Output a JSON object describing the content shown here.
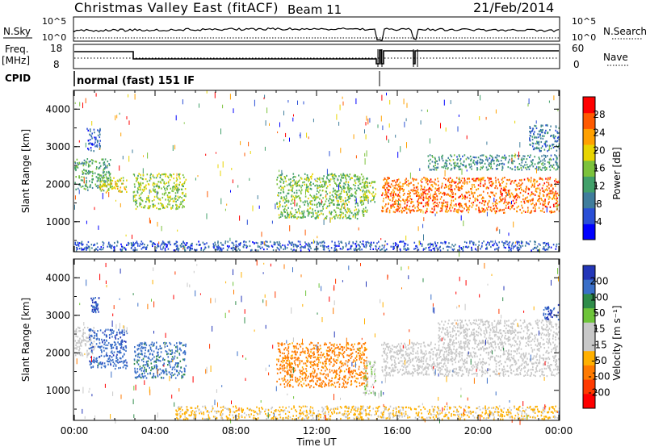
{
  "header": {
    "title": "Christmas Valley East (fitACF)",
    "beam": "Beam 11",
    "date": "21/Feb/2014"
  },
  "strips": {
    "nsky_label": "N.Sky",
    "nsearch_label": "N.Search",
    "freq_label_1": "Freq.",
    "freq_label_2": "[MHz]",
    "nave_label": "Nave",
    "cpid_label": "CPID",
    "cpid_text": "normal (fast) 151 IF",
    "nsky_ticks": [
      "10^5",
      "10^0"
    ],
    "nsearch_ticks": [
      "10^5",
      "10^0"
    ],
    "freq_ticks": [
      "18",
      "8"
    ],
    "nave_ticks": [
      "60",
      "0"
    ]
  },
  "colors": {
    "power": [
      "#0000ff",
      "#2a4fd6",
      "#3f7d9c",
      "#42a06a",
      "#7cc23c",
      "#e8d400",
      "#ffa000",
      "#ff5a00",
      "#ff0000"
    ],
    "velocity": [
      "#2336b8",
      "#3a6fc8",
      "#2f8c4a",
      "#6ec43a",
      "#c8c8c8",
      "#c8c8c8",
      "#ffb000",
      "#ff7a00",
      "#ff3a00",
      "#ff0000"
    ]
  },
  "chart_data": [
    {
      "type": "heatmap",
      "title": "Power",
      "ylabel": "Slant Range [km]",
      "xlabel": "",
      "ylim": [
        200,
        4500
      ],
      "xlim": [
        0,
        24
      ],
      "yticks": [
        "1000",
        "2000",
        "3000",
        "4000"
      ],
      "xticks": [
        "00:00",
        "04:00",
        "08:00",
        "12:00",
        "16:00",
        "20:00",
        "00:00"
      ],
      "colorbar": {
        "label": "Power [dB]",
        "ticks": [
          "4",
          "8",
          "12",
          "16",
          "20",
          "24",
          "28"
        ],
        "range": [
          0,
          30
        ]
      },
      "regions": [
        {
          "t0": 0.0,
          "t1": 1.8,
          "r0": 1850,
          "r1": 2700,
          "value": 12
        },
        {
          "t0": 0.6,
          "t1": 1.3,
          "r0": 2900,
          "r1": 3500,
          "value": 6
        },
        {
          "t0": 1.2,
          "t1": 2.6,
          "r0": 1800,
          "r1": 2200,
          "value": 18
        },
        {
          "t0": 2.9,
          "t1": 5.5,
          "r0": 1350,
          "r1": 2300,
          "value": 16
        },
        {
          "t0": 10.0,
          "t1": 14.5,
          "r0": 1100,
          "r1": 2300,
          "value": 14
        },
        {
          "t0": 14.3,
          "t1": 14.9,
          "r0": 1500,
          "r1": 2100,
          "value": 16
        },
        {
          "t0": 15.2,
          "t1": 24.0,
          "r0": 1250,
          "r1": 2200,
          "value": 24
        },
        {
          "t0": 17.5,
          "t1": 24.0,
          "r0": 2400,
          "r1": 2800,
          "value": 10
        },
        {
          "t0": 22.5,
          "t1": 24.0,
          "r0": 2900,
          "r1": 3600,
          "value": 8
        },
        {
          "t0": 0.0,
          "t1": 24.0,
          "r0": 250,
          "r1": 500,
          "value": 6
        }
      ]
    },
    {
      "type": "heatmap",
      "title": "Velocity",
      "ylabel": "Slant Range [km]",
      "xlabel": "Time UT",
      "ylim": [
        200,
        4500
      ],
      "xlim": [
        0,
        24
      ],
      "yticks": [
        "1000",
        "2000",
        "3000",
        "4000"
      ],
      "xticks": [
        "00:00",
        "04:00",
        "08:00",
        "12:00",
        "16:00",
        "20:00",
        "00:00"
      ],
      "colorbar": {
        "label": "Velocity [m s⁻¹]",
        "ticks": [
          "200",
          "100",
          "50",
          "15",
          "-15",
          "-50",
          "-100",
          "-200"
        ],
        "range": [
          -250,
          250
        ]
      },
      "regions": [
        {
          "t0": 0.0,
          "t1": 1.0,
          "r0": 1950,
          "r1": 2700,
          "value": 0
        },
        {
          "t0": 0.7,
          "t1": 2.6,
          "r0": 1600,
          "r1": 2650,
          "value": 180
        },
        {
          "t0": 0.8,
          "t1": 1.2,
          "r0": 3100,
          "r1": 3500,
          "value": 200
        },
        {
          "t0": 2.9,
          "t1": 5.5,
          "r0": 1350,
          "r1": 2300,
          "value": 170
        },
        {
          "t0": 10.0,
          "t1": 14.5,
          "r0": 1100,
          "r1": 2300,
          "value": -120
        },
        {
          "t0": 14.3,
          "t1": 14.9,
          "r0": 900,
          "r1": 1800,
          "value": 40
        },
        {
          "t0": 15.2,
          "t1": 24.0,
          "r0": 1400,
          "r1": 2300,
          "value": 0
        },
        {
          "t0": 18.0,
          "t1": 24.0,
          "r0": 2300,
          "r1": 2900,
          "value": 0
        },
        {
          "t0": 23.2,
          "t1": 24.0,
          "r0": 2900,
          "r1": 3300,
          "value": 200
        },
        {
          "t0": 5.0,
          "t1": 24.0,
          "r0": 250,
          "r1": 600,
          "value": -60
        }
      ]
    }
  ]
}
